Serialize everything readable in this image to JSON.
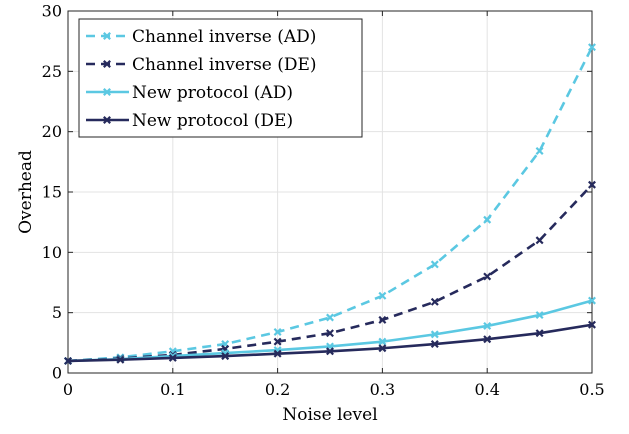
{
  "chart_data": {
    "type": "line",
    "title": "",
    "xlabel": "Noise level",
    "ylabel": "Overhead",
    "xlim": [
      0,
      0.5
    ],
    "ylim": [
      0,
      30
    ],
    "x_ticks": [
      0,
      0.1,
      0.2,
      0.3,
      0.4,
      0.5
    ],
    "x_tick_labels": [
      "0",
      "0.1",
      "0.2",
      "0.3",
      "0.4",
      "0.5"
    ],
    "y_ticks": [
      0,
      5,
      10,
      15,
      20,
      25,
      30
    ],
    "y_tick_labels": [
      "0",
      "5",
      "10",
      "15",
      "20",
      "25",
      "30"
    ],
    "grid": true,
    "legend_position": "top-left",
    "x": [
      0,
      0.05,
      0.1,
      0.15,
      0.2,
      0.25,
      0.3,
      0.35,
      0.4,
      0.45,
      0.5
    ],
    "series": [
      {
        "name": "Channel inverse (AD)",
        "color": "#5bc8e2",
        "dash": "dashed",
        "marker": "x",
        "values": [
          1.0,
          1.3,
          1.8,
          2.4,
          3.4,
          4.6,
          6.4,
          9.0,
          12.7,
          18.4,
          27.0
        ]
      },
      {
        "name": "Channel inverse (DE)",
        "color": "#262a5c",
        "dash": "dashed",
        "marker": "x",
        "values": [
          1.0,
          1.2,
          1.5,
          2.0,
          2.6,
          3.3,
          4.4,
          5.9,
          8.0,
          11.0,
          15.6
        ]
      },
      {
        "name": "New protocol (AD)",
        "color": "#5bc8e2",
        "dash": "solid",
        "marker": "x",
        "values": [
          1.0,
          1.15,
          1.4,
          1.65,
          1.9,
          2.2,
          2.6,
          3.2,
          3.9,
          4.8,
          6.0
        ]
      },
      {
        "name": "New protocol (DE)",
        "color": "#262a5c",
        "dash": "solid",
        "marker": "x",
        "values": [
          1.0,
          1.1,
          1.25,
          1.4,
          1.6,
          1.8,
          2.05,
          2.4,
          2.8,
          3.3,
          4.0
        ]
      }
    ]
  }
}
